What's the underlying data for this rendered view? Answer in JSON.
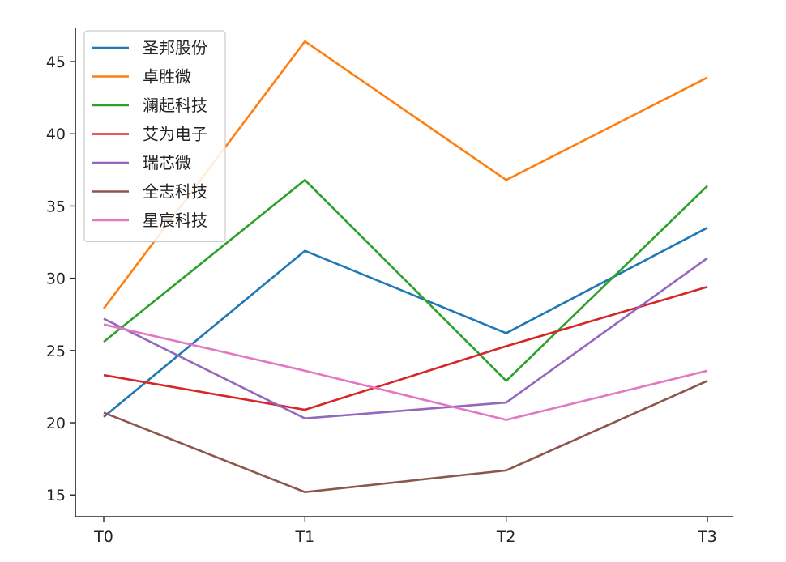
{
  "chart_data": {
    "type": "line",
    "title": "",
    "xlabel": "",
    "ylabel": "",
    "categories": [
      "T0",
      "T1",
      "T2",
      "T3"
    ],
    "ylim": [
      13.5,
      47.3
    ],
    "yticks": [
      15,
      20,
      25,
      30,
      35,
      40,
      45
    ],
    "grid": false,
    "legend_position": "top-left",
    "series": [
      {
        "name": "圣邦股份",
        "color": "#1f77b4",
        "values": [
          20.4,
          31.9,
          26.2,
          33.5
        ]
      },
      {
        "name": "卓胜微",
        "color": "#ff7f0e",
        "values": [
          27.9,
          46.4,
          36.8,
          43.9
        ]
      },
      {
        "name": "澜起科技",
        "color": "#2ca02c",
        "values": [
          25.6,
          36.8,
          22.9,
          36.4
        ]
      },
      {
        "name": "艾为电子",
        "color": "#d62728",
        "values": [
          23.3,
          20.9,
          25.3,
          29.4
        ]
      },
      {
        "name": "瑞芯微",
        "color": "#9467bd",
        "values": [
          27.2,
          20.3,
          21.4,
          31.4
        ]
      },
      {
        "name": "全志科技",
        "color": "#8c564b",
        "values": [
          20.7,
          15.2,
          16.7,
          22.9
        ]
      },
      {
        "name": "星宸科技",
        "color": "#e377c2",
        "values": [
          26.8,
          23.6,
          20.2,
          23.6
        ]
      }
    ]
  }
}
